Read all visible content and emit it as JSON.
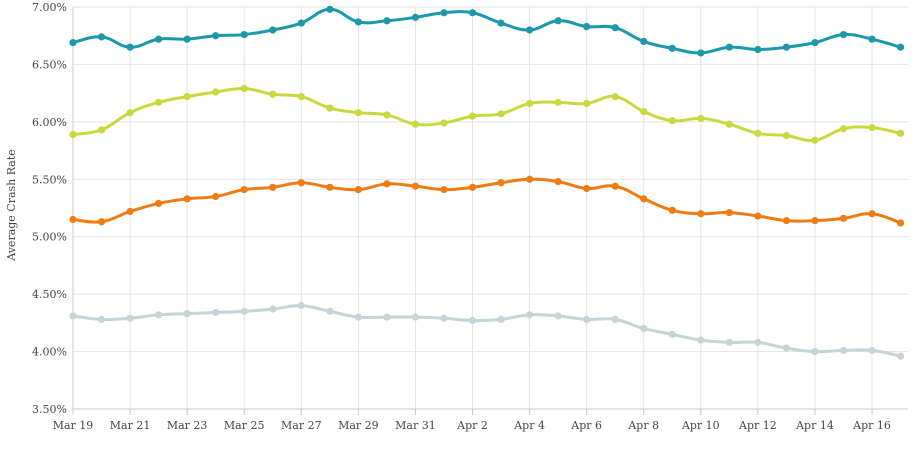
{
  "chart_data": {
    "type": "line",
    "ylabel": "Average Crash Rate",
    "ylim": [
      3.5,
      7.0
    ],
    "yticks": [
      3.5,
      4.0,
      4.5,
      5.0,
      5.5,
      6.0,
      6.5,
      7.0
    ],
    "ytick_labels": [
      "3.50%",
      "4.00%",
      "4.50%",
      "5.00%",
      "5.50%",
      "6.00%",
      "6.50%",
      "7.00%"
    ],
    "x": [
      "Mar 19",
      "Mar 20",
      "Mar 21",
      "Mar 22",
      "Mar 23",
      "Mar 24",
      "Mar 25",
      "Mar 26",
      "Mar 27",
      "Mar 28",
      "Mar 29",
      "Mar 30",
      "Mar 31",
      "Apr 1",
      "Apr 2",
      "Apr 3",
      "Apr 4",
      "Apr 5",
      "Apr 6",
      "Apr 7",
      "Apr 8",
      "Apr 9",
      "Apr 10",
      "Apr 11",
      "Apr 12",
      "Apr 13",
      "Apr 14",
      "Apr 15",
      "Apr 16",
      "Apr 17"
    ],
    "x_tick_labels": [
      "Mar 19",
      "Mar 21",
      "Mar 23",
      "Mar 25",
      "Mar 27",
      "Mar 29",
      "Mar 31",
      "Apr 2",
      "Apr 4",
      "Apr 6",
      "Apr 8",
      "Apr 10",
      "Apr 12",
      "Apr 14",
      "Apr 16"
    ],
    "grid": true,
    "series": [
      {
        "color": "#1c98ab",
        "values": [
          6.69,
          6.74,
          6.65,
          6.72,
          6.72,
          6.75,
          6.76,
          6.8,
          6.86,
          6.98,
          6.87,
          6.88,
          6.91,
          6.95,
          6.95,
          6.86,
          6.8,
          6.88,
          6.83,
          6.82,
          6.7,
          6.64,
          6.6,
          6.65,
          6.63,
          6.65,
          6.69,
          6.76,
          6.72,
          6.65
        ]
      },
      {
        "color": "#c8d93e",
        "values": [
          5.89,
          5.93,
          6.08,
          6.17,
          6.22,
          6.26,
          6.29,
          6.24,
          6.22,
          6.12,
          6.08,
          6.06,
          5.98,
          5.99,
          6.05,
          6.07,
          6.16,
          6.17,
          6.16,
          6.22,
          6.09,
          6.01,
          6.03,
          5.98,
          5.9,
          5.88,
          5.84,
          5.94,
          5.95,
          5.9
        ]
      },
      {
        "color": "#ef7b12",
        "values": [
          5.15,
          5.13,
          5.22,
          5.29,
          5.33,
          5.35,
          5.41,
          5.43,
          5.47,
          5.43,
          5.41,
          5.46,
          5.44,
          5.41,
          5.43,
          5.47,
          5.5,
          5.48,
          5.42,
          5.44,
          5.33,
          5.23,
          5.2,
          5.21,
          5.18,
          5.14,
          5.14,
          5.16,
          5.2,
          5.12
        ]
      },
      {
        "color": "#c4d4d8",
        "values": [
          4.31,
          4.28,
          4.29,
          4.32,
          4.33,
          4.34,
          4.35,
          4.37,
          4.4,
          4.35,
          4.3,
          4.3,
          4.3,
          4.29,
          4.27,
          4.28,
          4.32,
          4.31,
          4.28,
          4.28,
          4.2,
          4.15,
          4.1,
          4.08,
          4.08,
          4.03,
          4.0,
          4.01,
          4.01,
          3.96
        ]
      }
    ]
  }
}
